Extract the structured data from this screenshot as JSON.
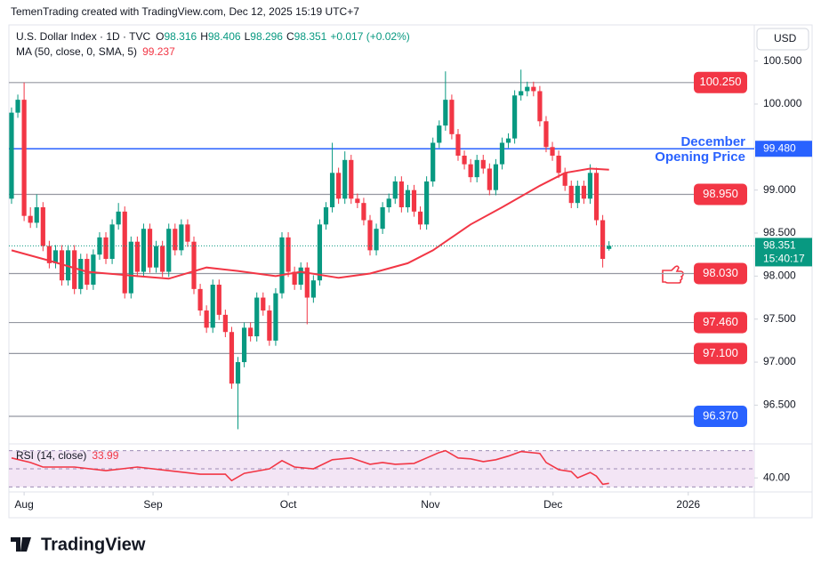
{
  "chart_data": {
    "type": "candlestick",
    "credit": "TemenTrading created with TradingView.com, Dec 12, 2025 15:19 UTC+7",
    "title": "U.S. Dollar Index · 1D · TVC",
    "ohlc_labels": [
      "O",
      "H",
      "L",
      "C"
    ],
    "change": "+0.017 (+0.02%)",
    "currency": "USD",
    "countdown": "15:40:17",
    "watermark": "TradingView",
    "up_color": "#089981",
    "down_color": "#f23645",
    "xlim": [
      -0.42,
      118.1
    ],
    "ylim": [
      96.07,
      100.92
    ],
    "xticks": [
      {
        "value": 2,
        "label": "Aug"
      },
      {
        "value": 22.5,
        "label": "Sep"
      },
      {
        "value": 44,
        "label": "Oct"
      },
      {
        "value": 66.6,
        "label": "Nov"
      },
      {
        "value": 86.1,
        "label": "Dec"
      },
      {
        "value": 107.6,
        "label": "2026"
      }
    ],
    "yticks": [
      {
        "value": 100.5,
        "label": "100.500"
      },
      {
        "value": 100,
        "label": "100.000"
      },
      {
        "value": 99.5,
        "label": "99.500"
      },
      {
        "value": 99,
        "label": "99.000"
      },
      {
        "value": 98.5,
        "label": "98.500"
      },
      {
        "value": 98,
        "label": "98.000"
      },
      {
        "value": 97.5,
        "label": "97.500"
      },
      {
        "value": 97,
        "label": "97.000"
      },
      {
        "value": 96.5,
        "label": "96.500"
      }
    ],
    "categories": [
      null,
      null,
      null,
      null,
      null,
      null,
      null,
      null,
      null,
      null,
      null,
      null,
      null,
      null,
      null,
      null,
      null,
      null,
      null,
      null,
      null,
      null,
      null,
      null,
      null,
      null,
      null,
      null,
      null,
      null,
      null,
      null,
      null,
      null,
      null,
      null,
      null,
      null,
      null,
      null,
      null,
      null,
      null,
      null,
      null,
      null,
      null,
      null,
      null,
      null,
      null,
      null,
      null,
      null,
      null,
      null,
      null,
      null,
      null,
      null,
      null,
      null,
      null,
      null,
      null,
      null,
      null,
      null,
      null,
      null,
      null,
      null,
      null,
      null,
      null,
      null,
      null,
      null,
      null,
      null,
      null,
      null,
      null,
      null,
      null,
      null,
      null,
      null,
      null,
      null,
      null,
      null,
      null,
      null,
      null,
      null
    ],
    "candles": [
      [
        98.9,
        99.96,
        98.84,
        99.9
      ],
      [
        99.9,
        100.11,
        99.84,
        100.05
      ],
      [
        100.05,
        100.25,
        98.64,
        98.7
      ],
      [
        98.7,
        98.8,
        98.56,
        98.62
      ],
      [
        98.62,
        98.95,
        98.56,
        98.8
      ],
      [
        98.8,
        98.86,
        98.29,
        98.35
      ],
      [
        98.35,
        98.41,
        98.09,
        98.15
      ],
      [
        98.15,
        98.36,
        98.09,
        98.3
      ],
      [
        98.3,
        98.36,
        97.89,
        97.95
      ],
      [
        97.95,
        98.36,
        97.89,
        98.3
      ],
      [
        98.3,
        98.36,
        97.79,
        97.85
      ],
      [
        97.85,
        98.26,
        97.79,
        98.2
      ],
      [
        98.2,
        98.26,
        97.84,
        97.9
      ],
      [
        97.9,
        98.31,
        97.84,
        98.25
      ],
      [
        98.25,
        98.51,
        98.19,
        98.45
      ],
      [
        98.45,
        98.51,
        98.14,
        98.2
      ],
      [
        98.2,
        98.66,
        98.14,
        98.6
      ],
      [
        98.6,
        98.85,
        98.54,
        98.75
      ],
      [
        98.75,
        98.81,
        97.74,
        97.8
      ],
      [
        97.8,
        98.46,
        97.74,
        98.4
      ],
      [
        98.4,
        98.46,
        97.99,
        98.05
      ],
      [
        98.05,
        98.61,
        97.99,
        98.55
      ],
      [
        98.55,
        98.61,
        98.04,
        98.1
      ],
      [
        98.1,
        98.41,
        98.04,
        98.35
      ],
      [
        98.35,
        98.41,
        97.99,
        98.05
      ],
      [
        98.05,
        98.61,
        97.99,
        98.55
      ],
      [
        98.55,
        98.61,
        98.24,
        98.3
      ],
      [
        98.3,
        98.66,
        98.24,
        98.6
      ],
      [
        98.6,
        98.66,
        98.34,
        98.4
      ],
      [
        98.4,
        98.46,
        97.79,
        97.85
      ],
      [
        97.85,
        97.91,
        97.54,
        97.6
      ],
      [
        97.6,
        97.66,
        97.34,
        97.4
      ],
      [
        97.4,
        97.96,
        97.34,
        97.9
      ],
      [
        97.9,
        97.96,
        97.49,
        97.55
      ],
      [
        97.55,
        97.61,
        97.29,
        97.35
      ],
      [
        97.35,
        97.41,
        96.69,
        96.75
      ],
      [
        96.75,
        97.06,
        96.22,
        97.0
      ],
      [
        97.0,
        97.46,
        96.94,
        97.4
      ],
      [
        97.4,
        97.46,
        97.24,
        97.3
      ],
      [
        97.3,
        97.81,
        97.24,
        97.75
      ],
      [
        97.75,
        97.81,
        97.54,
        97.6
      ],
      [
        97.6,
        97.66,
        97.19,
        97.25
      ],
      [
        97.25,
        97.86,
        97.19,
        97.8
      ],
      [
        97.8,
        98.51,
        97.74,
        98.45
      ],
      [
        98.45,
        98.51,
        97.99,
        98.05
      ],
      [
        98.05,
        98.11,
        97.84,
        97.9
      ],
      [
        97.9,
        98.16,
        97.84,
        98.1
      ],
      [
        98.1,
        98.16,
        97.44,
        97.75
      ],
      [
        97.75,
        98.01,
        97.69,
        97.95
      ],
      [
        97.95,
        98.66,
        97.89,
        98.6
      ],
      [
        98.6,
        98.86,
        98.54,
        98.8
      ],
      [
        98.8,
        99.55,
        98.74,
        99.2
      ],
      [
        99.2,
        99.26,
        98.84,
        98.9
      ],
      [
        98.9,
        99.45,
        98.84,
        99.35
      ],
      [
        99.35,
        99.41,
        98.84,
        98.9
      ],
      [
        98.9,
        98.96,
        98.79,
        98.85
      ],
      [
        98.85,
        98.91,
        98.59,
        98.65
      ],
      [
        98.65,
        98.71,
        98.24,
        98.3
      ],
      [
        98.3,
        98.61,
        98.24,
        98.55
      ],
      [
        98.55,
        98.86,
        98.49,
        98.8
      ],
      [
        98.8,
        98.96,
        98.74,
        98.9
      ],
      [
        98.9,
        99.16,
        98.84,
        99.1
      ],
      [
        99.1,
        99.16,
        98.74,
        98.8
      ],
      [
        98.8,
        99.06,
        98.74,
        99.0
      ],
      [
        99.0,
        99.06,
        98.69,
        98.75
      ],
      [
        98.75,
        98.81,
        98.54,
        98.6
      ],
      [
        98.6,
        99.16,
        98.54,
        99.1
      ],
      [
        99.1,
        99.61,
        99.04,
        99.55
      ],
      [
        99.55,
        99.81,
        99.49,
        99.75
      ],
      [
        99.75,
        100.38,
        99.69,
        100.05
      ],
      [
        100.05,
        100.11,
        99.59,
        99.65
      ],
      [
        99.65,
        99.71,
        99.34,
        99.4
      ],
      [
        99.4,
        99.46,
        99.24,
        99.3
      ],
      [
        99.3,
        99.36,
        99.09,
        99.15
      ],
      [
        99.15,
        99.41,
        99.09,
        99.35
      ],
      [
        99.35,
        99.41,
        99.19,
        99.25
      ],
      [
        99.25,
        99.31,
        98.94,
        99.0
      ],
      [
        99.0,
        99.36,
        98.94,
        99.3
      ],
      [
        99.3,
        99.61,
        99.24,
        99.55
      ],
      [
        99.55,
        99.66,
        99.49,
        99.6
      ],
      [
        99.6,
        100.16,
        99.54,
        100.1
      ],
      [
        100.1,
        100.4,
        100.04,
        100.15
      ],
      [
        100.15,
        100.26,
        100.09,
        100.2
      ],
      [
        100.2,
        100.26,
        100.09,
        100.15
      ],
      [
        100.15,
        100.21,
        99.74,
        99.8
      ],
      [
        99.8,
        99.86,
        99.44,
        99.5
      ],
      [
        99.5,
        99.56,
        99.34,
        99.4
      ],
      [
        99.4,
        99.46,
        99.14,
        99.2
      ],
      [
        99.2,
        99.26,
        98.99,
        99.05
      ],
      [
        99.05,
        99.11,
        98.79,
        98.85
      ],
      [
        98.85,
        99.11,
        98.79,
        99.05
      ],
      [
        99.05,
        99.11,
        98.84,
        98.9
      ],
      [
        98.9,
        99.3,
        98.84,
        99.2
      ],
      [
        99.2,
        99.26,
        98.59,
        98.65
      ],
      [
        98.65,
        98.71,
        98.1,
        98.2
      ],
      [
        98.316,
        98.406,
        98.296,
        98.351
      ]
    ],
    "ma": {
      "name": "MA (50, close, 0, SMA, 5)",
      "color": "#f23645",
      "x": [
        0,
        6,
        12,
        20,
        25,
        31,
        36,
        42,
        46,
        52,
        57,
        63,
        67,
        73,
        78,
        84,
        88,
        92,
        95
      ],
      "values": [
        98.3,
        98.18,
        98.05,
        98.0,
        97.97,
        98.1,
        98.06,
        98.0,
        98.05,
        97.98,
        98.03,
        98.15,
        98.3,
        98.6,
        98.8,
        99.05,
        99.2,
        99.25,
        99.237
      ]
    },
    "levels": [
      {
        "value": 100.25,
        "label": "100.250",
        "color": "#f23645"
      },
      {
        "value": 98.95,
        "label": "98.950",
        "color": "#f23645"
      },
      {
        "value": 98.03,
        "label": "98.030",
        "color": "#f23645"
      },
      {
        "value": 97.46,
        "label": "97.460",
        "color": "#f23645"
      },
      {
        "value": 97.1,
        "label": "97.100",
        "color": "#f23645"
      },
      {
        "value": 96.37,
        "label": "96.370",
        "color": "#2962ff"
      }
    ],
    "opening_price": {
      "value": 99.48,
      "label": "99.480",
      "color": "#2962ff",
      "annotation": [
        "December",
        "Opening Price"
      ]
    },
    "rsi": {
      "name": "RSI (14, close)",
      "color": "#f23645",
      "ylim": [
        25.5,
        76.5
      ],
      "bands": [
        70,
        50,
        30
      ],
      "yticks": [
        {
          "value": 40,
          "label": "40.00"
        }
      ],
      "x": [
        0,
        3,
        5,
        10,
        15,
        20,
        25,
        30,
        34,
        35,
        37,
        41,
        43,
        45,
        48,
        51,
        54,
        57,
        59,
        61,
        64,
        66,
        68,
        69,
        71,
        73,
        75,
        77,
        79,
        81,
        84,
        85,
        87,
        89,
        90,
        92,
        93,
        94,
        95
      ],
      "values": [
        62,
        57,
        52,
        52,
        48,
        52,
        48,
        44,
        44,
        37,
        45,
        50,
        59,
        52,
        50,
        60,
        62,
        55,
        57,
        55,
        56,
        62,
        68,
        70,
        62,
        61,
        58,
        60,
        64,
        69,
        67,
        57,
        49,
        47,
        40,
        46,
        42,
        33,
        33.99
      ]
    }
  }
}
